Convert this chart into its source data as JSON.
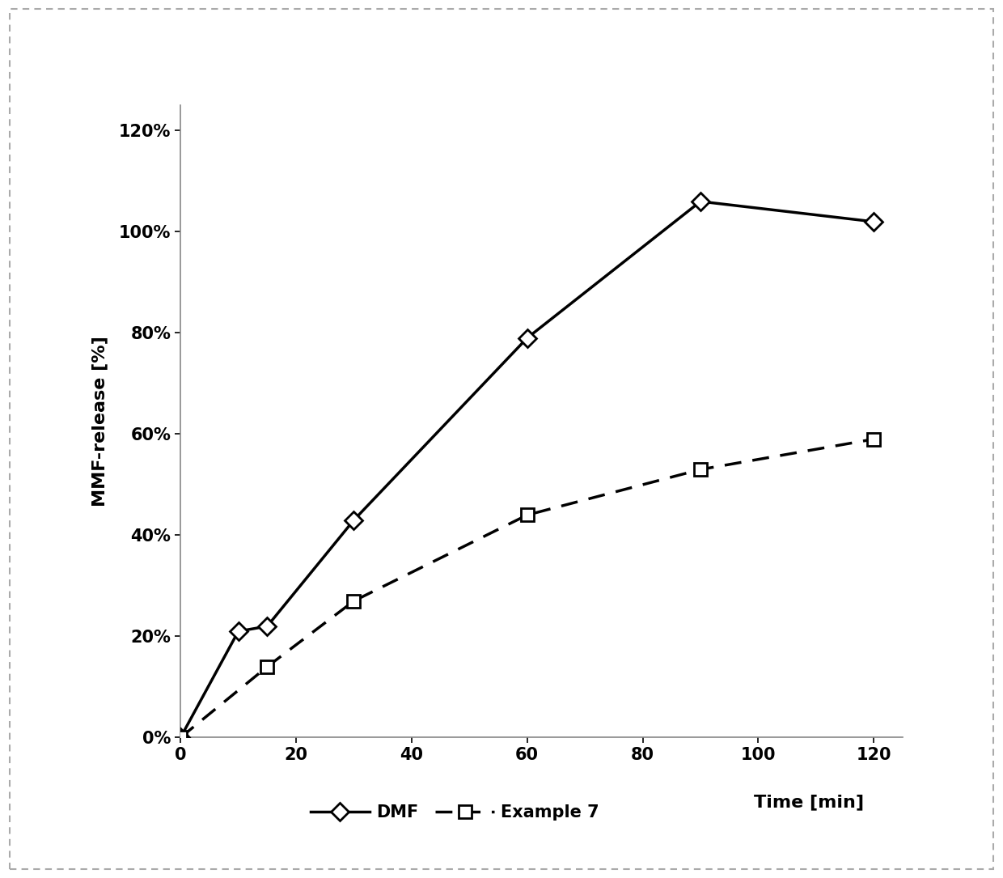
{
  "dmf_x": [
    0,
    10,
    15,
    30,
    60,
    90,
    120
  ],
  "dmf_y": [
    0.0,
    0.21,
    0.22,
    0.43,
    0.79,
    1.06,
    1.02
  ],
  "ex7_x": [
    0,
    15,
    30,
    60,
    90,
    120
  ],
  "ex7_y": [
    0.0,
    0.14,
    0.27,
    0.44,
    0.53,
    0.59
  ],
  "xlabel": "Time [min]",
  "ylabel": "MMF-release [%]",
  "xlim": [
    0,
    125
  ],
  "ylim": [
    0,
    1.25
  ],
  "xticks": [
    0,
    20,
    40,
    60,
    80,
    100,
    120
  ],
  "yticks": [
    0.0,
    0.2,
    0.4,
    0.6,
    0.8,
    1.0,
    1.2
  ],
  "dmf_label": "DMF",
  "ex7_label": "Example 7",
  "line_color": "#000000",
  "bg_color": "#ffffff",
  "axis_fontsize": 16,
  "tick_fontsize": 15,
  "legend_fontsize": 15
}
